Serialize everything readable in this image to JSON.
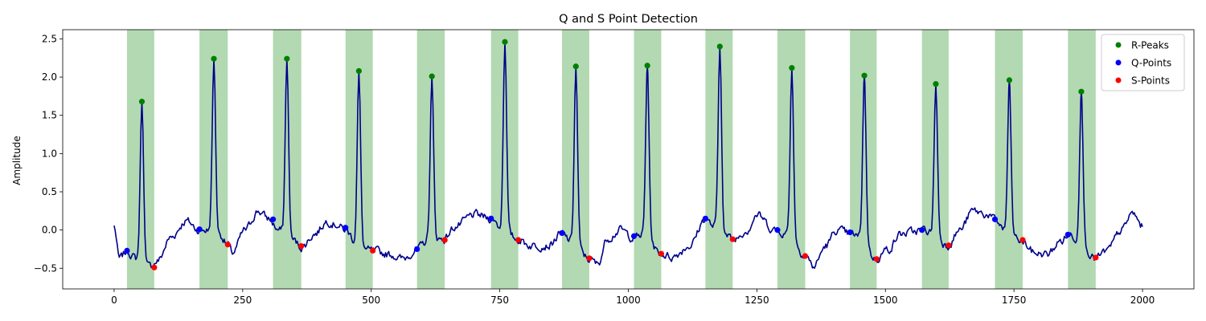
{
  "chart_data": {
    "type": "line",
    "title": "Q and S Point Detection",
    "xlabel": "",
    "ylabel": "Amplitude",
    "xlim": [
      -100,
      2100
    ],
    "ylim": [
      -0.77,
      2.62
    ],
    "x_ticks": [
      0,
      250,
      500,
      750,
      1000,
      1250,
      1500,
      1750,
      2000
    ],
    "y_ticks": [
      -0.5,
      0.0,
      0.5,
      1.0,
      1.5,
      2.0,
      2.5
    ],
    "x_tick_labels": [
      "0",
      "250",
      "500",
      "750",
      "1000",
      "1250",
      "1500",
      "1750",
      "2000"
    ],
    "y_tick_labels": [
      "−0.5",
      "0.0",
      "0.5",
      "1.0",
      "1.5",
      "2.0",
      "2.5"
    ],
    "grid": false,
    "legend_position": "top-right",
    "legend": [
      {
        "label": "R-Peaks",
        "color": "#008000"
      },
      {
        "label": "Q-Points",
        "color": "#0000ff"
      },
      {
        "label": "S-Points",
        "color": "#ff0000"
      }
    ],
    "signal": {
      "color": "#00008b",
      "x_start": 0,
      "x_end": 2000,
      "sample_step": 2,
      "baseline_knots": [
        [
          0,
          0.05
        ],
        [
          10,
          -0.38
        ],
        [
          25,
          -0.28
        ],
        [
          45,
          -0.38
        ],
        [
          70,
          -0.48
        ],
        [
          85,
          -0.4
        ],
        [
          110,
          -0.1
        ],
        [
          140,
          0.12
        ],
        [
          165,
          0.0
        ],
        [
          178,
          0.0
        ],
        [
          205,
          -0.05
        ],
        [
          220,
          -0.18
        ],
        [
          230,
          -0.3
        ],
        [
          255,
          0.0
        ],
        [
          280,
          0.25
        ],
        [
          300,
          0.15
        ],
        [
          320,
          0.0
        ],
        [
          345,
          -0.12
        ],
        [
          365,
          -0.22
        ],
        [
          390,
          -0.05
        ],
        [
          415,
          0.12
        ],
        [
          430,
          0.08
        ],
        [
          450,
          0.0
        ],
        [
          475,
          -0.2
        ],
        [
          500,
          -0.28
        ],
        [
          540,
          -0.32
        ],
        [
          560,
          -0.38
        ],
        [
          590,
          -0.25
        ],
        [
          615,
          -0.1
        ],
        [
          640,
          -0.12
        ],
        [
          665,
          0.05
        ],
        [
          700,
          0.2
        ],
        [
          735,
          0.15
        ],
        [
          755,
          0.0
        ],
        [
          785,
          -0.12
        ],
        [
          810,
          -0.2
        ],
        [
          845,
          -0.2
        ],
        [
          870,
          -0.05
        ],
        [
          890,
          -0.15
        ],
        [
          925,
          -0.38
        ],
        [
          940,
          -0.45
        ],
        [
          960,
          -0.1
        ],
        [
          985,
          0.0
        ],
        [
          1010,
          -0.1
        ],
        [
          1035,
          -0.05
        ],
        [
          1060,
          -0.3
        ],
        [
          1085,
          -0.35
        ],
        [
          1120,
          -0.2
        ],
        [
          1150,
          0.15
        ],
        [
          1165,
          0.05
        ],
        [
          1205,
          -0.12
        ],
        [
          1230,
          0.0
        ],
        [
          1250,
          0.2
        ],
        [
          1285,
          0.0
        ],
        [
          1310,
          -0.05
        ],
        [
          1345,
          -0.33
        ],
        [
          1360,
          -0.48
        ],
        [
          1385,
          -0.2
        ],
        [
          1405,
          0.0
        ],
        [
          1430,
          -0.05
        ],
        [
          1455,
          -0.1
        ],
        [
          1480,
          -0.38
        ],
        [
          1505,
          -0.25
        ],
        [
          1530,
          -0.05
        ],
        [
          1575,
          0.0
        ],
        [
          1595,
          -0.05
        ],
        [
          1620,
          -0.2
        ],
        [
          1645,
          0.0
        ],
        [
          1670,
          0.25
        ],
        [
          1700,
          0.2
        ],
        [
          1712,
          0.13
        ],
        [
          1740,
          -0.05
        ],
        [
          1765,
          -0.15
        ],
        [
          1790,
          -0.3
        ],
        [
          1815,
          -0.32
        ],
        [
          1840,
          -0.15
        ],
        [
          1858,
          -0.06
        ],
        [
          1880,
          -0.15
        ],
        [
          1908,
          -0.38
        ],
        [
          1930,
          -0.28
        ],
        [
          1960,
          0.0
        ],
        [
          1980,
          0.22
        ],
        [
          2000,
          0.05
        ]
      ]
    },
    "r_peaks": {
      "name": "R-Peaks",
      "color": "#008000",
      "x": [
        54,
        194,
        336,
        476,
        618,
        760,
        898,
        1037,
        1178,
        1318,
        1459,
        1598,
        1741,
        1881
      ],
      "y": [
        1.68,
        2.24,
        2.24,
        2.08,
        2.01,
        2.46,
        2.14,
        2.15,
        2.4,
        2.12,
        2.02,
        1.91,
        1.96,
        1.81
      ]
    },
    "q_points": {
      "name": "Q-Points",
      "color": "#0000ff",
      "x": [
        25,
        166,
        309,
        450,
        589,
        733,
        871,
        1011,
        1150,
        1290,
        1431,
        1571,
        1713,
        1855
      ],
      "y": [
        -0.27,
        0.01,
        0.14,
        0.03,
        -0.25,
        0.15,
        -0.04,
        -0.08,
        0.15,
        0.0,
        -0.03,
        0.0,
        0.14,
        -0.06
      ]
    },
    "s_points": {
      "name": "S-Points",
      "color": "#ff0000",
      "x": [
        78,
        221,
        364,
        503,
        643,
        786,
        924,
        1064,
        1203,
        1344,
        1483,
        1623,
        1767,
        1909
      ],
      "y": [
        -0.49,
        -0.19,
        -0.21,
        -0.27,
        -0.13,
        -0.13,
        -0.37,
        -0.31,
        -0.12,
        -0.34,
        -0.38,
        -0.2,
        -0.13,
        -0.36
      ]
    },
    "qrs_regions": {
      "color": "#008000",
      "opacity": 0.3,
      "spans": [
        [
          25,
          78
        ],
        [
          166,
          221
        ],
        [
          309,
          364
        ],
        [
          450,
          503
        ],
        [
          589,
          643
        ],
        [
          733,
          786
        ],
        [
          871,
          924
        ],
        [
          1011,
          1064
        ],
        [
          1150,
          1203
        ],
        [
          1290,
          1344
        ],
        [
          1431,
          1483
        ],
        [
          1571,
          1623
        ],
        [
          1713,
          1767
        ],
        [
          1855,
          1909
        ]
      ]
    }
  }
}
